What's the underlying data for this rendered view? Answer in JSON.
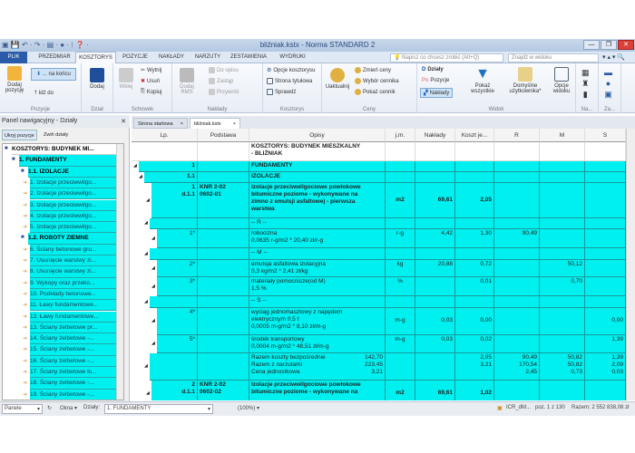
{
  "window": {
    "title": "bliźniak.kstx - Norma STANDARD 2",
    "quick_access": [
      "save-icon",
      "undo-icon",
      "redo-icon",
      "print-icon",
      "color-icon",
      "info-icon",
      "help-icon"
    ]
  },
  "menu_tabs": [
    "PLIK",
    "PRZEDMIAR",
    "KOSZTORYS",
    "POZYCJE",
    "NAKŁADY",
    "NARZUTY",
    "ZESTAWIENIA",
    "WYDRUKI"
  ],
  "active_tab": "KOSZTORYS",
  "tell_me_placeholder": "Napisz co chcesz zrobić (Alt+Q)",
  "find_placeholder": "Znajdź w widoku",
  "ribbon": {
    "pozycje": {
      "label": "Pozycje",
      "dodaj_pozycje": "Dodaj pozycję",
      "na_koncu": "... na końcu",
      "idz_do": "Idź do"
    },
    "dzial": {
      "label": "Dział",
      "dodaj": "Dodaj"
    },
    "schowek": {
      "label": "Schowek",
      "wklej": "Wklej",
      "wytnij": "Wytnij",
      "usun": "Usuń",
      "kopiuj": "Kopiuj"
    },
    "naklady": {
      "label": "Nakłady",
      "dodaj_rms": "Dodaj RMS",
      "do_opisu": "Do opisu",
      "zastap": "Zastąp",
      "przywroc": "Przywróć"
    },
    "kosztorys": {
      "label": "Kosztorys",
      "opcje": "Opcje kosztorysu",
      "strona": "Strona tytułowa",
      "sprawdz": "Sprawdź"
    },
    "ceny": {
      "label": "Ceny",
      "uaktualnij": "Uaktualnij",
      "zmien": "Zmień ceny",
      "wybor": "Wybór cennika",
      "pokaz": "Pokaż cennik"
    },
    "widok": {
      "label": "Widok",
      "dzialy": "Działy",
      "pozycje": "Pozycje",
      "naklady": "Nakłady",
      "pokaz_wszystkie": "Pokaż wszystkie",
      "domyslne": "Domyślne użytkownika*",
      "opcje_widoku": "Opcje widoku"
    },
    "na": {
      "label": "Na..."
    },
    "za": {
      "label": "Za..."
    }
  },
  "nav": {
    "title": "Panel nawigacyjny - Działy",
    "tabs": [
      "Ukryj pozycje",
      "Zwiń działy"
    ],
    "items": [
      {
        "t": "KOSZTORYS: BUDYNEK MI...",
        "level": 0,
        "bold": true
      },
      {
        "t": "1. FUNDAMENTY",
        "level": 1,
        "bold": true
      },
      {
        "t": "1.1. IZOLACJE",
        "level": 2,
        "bold": true
      },
      {
        "t": "1. Izolacje przeciwwilgo...",
        "level": 3
      },
      {
        "t": "2. Izolacje przeciwwilgo...",
        "level": 3
      },
      {
        "t": "3. Izolacje przeciwwilgo...",
        "level": 3
      },
      {
        "t": "4. Izolacje przeciwwilgo...",
        "level": 3
      },
      {
        "t": "5. Izolacje przeciwwilgo...",
        "level": 3
      },
      {
        "t": "1.2. ROBOTY ZIEMNE",
        "level": 2,
        "bold": true
      },
      {
        "t": "6. Ściany betonowe gru...",
        "level": 3
      },
      {
        "t": "7. Usunięcie warstwy zi...",
        "level": 3
      },
      {
        "t": "8. Usunięcie warstwy zi...",
        "level": 3
      },
      {
        "t": "9. Wykopy oraz przeko...",
        "level": 3
      },
      {
        "t": "10. Podkłady betonowe...",
        "level": 3
      },
      {
        "t": "11. Ławy fundamentowe...",
        "level": 3
      },
      {
        "t": "12. Ławy fundamentowe...",
        "level": 3
      },
      {
        "t": "13. Ściany żelbetowe pr...",
        "level": 3
      },
      {
        "t": "14. Ściany żelbetowe -...",
        "level": 3
      },
      {
        "t": "15. Ściany żelbetowe -...",
        "level": 3
      },
      {
        "t": "16. Ściany żelbetowe -...",
        "level": 3
      },
      {
        "t": "17. Ściany żelbetowe łu...",
        "level": 3
      },
      {
        "t": "18. Ściany żelbetowe -...",
        "level": 3
      },
      {
        "t": "19. Ściany żelbetowe -...",
        "level": 3
      }
    ]
  },
  "doc_tabs": [
    "Strona startowa",
    "bliźniak.kstx"
  ],
  "grid": {
    "columns": [
      "Lp.",
      "Podstawa",
      "Opisy",
      "j.m.",
      "Nakłady",
      "Koszt je...",
      "R",
      "M",
      "S"
    ],
    "rows": [
      {
        "level": 0,
        "lp": "",
        "pod": "",
        "opis": [
          "KOSZTORYS: BUDYNEK MIESZKALNY",
          "- BLIŹNIAK"
        ],
        "bold": true,
        "white": true
      },
      {
        "level": 1,
        "lp": "1",
        "pod": "",
        "opis": [
          "FUNDAMENTY"
        ],
        "bold": true
      },
      {
        "level": 2,
        "lp": "1.1",
        "pod": "",
        "opis": [
          "IZOLACJE"
        ],
        "bold": true
      },
      {
        "level": 3,
        "lp": "1\nd.1.1",
        "pod": "KNR 2-02\n0602-01",
        "opis": [
          "Izolacje przeciwwilgociowe powłokowe",
          "bitumiczne poziome - wykonywane na",
          "zimno z emulsji asfaltowej - pierwsza",
          "warstwa"
        ],
        "jm": "m2",
        "nak": "69,61",
        "koszt": "2,05",
        "bold": true
      },
      {
        "level": 4,
        "lp": "",
        "pod": "",
        "opis": [
          "-- R --"
        ]
      },
      {
        "level": 5,
        "lp": "1*",
        "pod": "",
        "opis": [
          "robocizna",
          "0,0635 r-g/m2 * 20,40 zł/r-g"
        ],
        "jm": "r-g",
        "nak": "4,42",
        "koszt": "1,30",
        "r": "90,49"
      },
      {
        "level": 4,
        "lp": "",
        "pod": "",
        "opis": [
          "-- M --"
        ]
      },
      {
        "level": 5,
        "lp": "2*",
        "pod": "",
        "opis": [
          "emulsja asfaltowa izolacyjna",
          "0,3 kg/m2 * 2,41 zł/kg"
        ],
        "jm": "kg",
        "nak": "20,88",
        "koszt": "0,72",
        "m": "50,12"
      },
      {
        "level": 5,
        "lp": "3*",
        "pod": "",
        "opis": [
          "materiały pomocnicze(od M)",
          "1,5 %"
        ],
        "jm": "%",
        "koszt": "0,01",
        "m": "0,70"
      },
      {
        "level": 4,
        "lp": "",
        "pod": "",
        "opis": [
          "-- S --"
        ]
      },
      {
        "level": 5,
        "lp": "4*",
        "pod": "",
        "opis": [
          "wyciąg jednomasztowy z napędem",
          "elektrycznym 0,5 t",
          "0,0005 m-g/m2 * 8,10 zł/m-g"
        ],
        "jm": "m-g",
        "nak": "0,03",
        "koszt": "0,00",
        "s": "0,00"
      },
      {
        "level": 5,
        "lp": "5*",
        "pod": "",
        "opis": [
          "środek transportowy",
          "0,0004 m-g/m2 * 48,51 zł/m-g"
        ],
        "jm": "m-g",
        "nak": "0,03",
        "koszt": "0,02",
        "s": "1,39"
      },
      {
        "level": 4,
        "lp": "",
        "pod": "",
        "opis": [
          "Razem koszty bezpośrednie",
          "Razem z narzutami",
          "Cena jednostkowa"
        ],
        "opisval": [
          "142,70",
          "223,45",
          "3,21"
        ],
        "koszt": "2,05\n3,21",
        "r": "90,49\n170,54\n2,45",
        "m": "50,82\n50,82\n0,73",
        "s": "1,39\n2,09\n0,03"
      },
      {
        "level": 3,
        "lp": "2\nd.1.1",
        "pod": "KNR 2-02\n0602-02",
        "opis": [
          "Izolacje przeciwwilgociowe powłokowe",
          "bitumiczne poziome - wykonywane na"
        ],
        "jm": "m2",
        "nak": "69,61",
        "koszt": "1,02",
        "bold": true
      }
    ]
  },
  "status": {
    "panele": "Panele",
    "okna": "Okna",
    "dzialy_label": "Działy:",
    "dzialy_value": "1. FUNDAMENTY",
    "zoom": "(100%)",
    "file": "ICR_dM...",
    "poz": "poz. 1 z 130",
    "razem": "Razem: 2 552 838,08 zł"
  },
  "colors": {
    "row_bg": "#00f0f0",
    "file_tab": "#2a5ba8",
    "title_bar": "#c9d9ec"
  }
}
